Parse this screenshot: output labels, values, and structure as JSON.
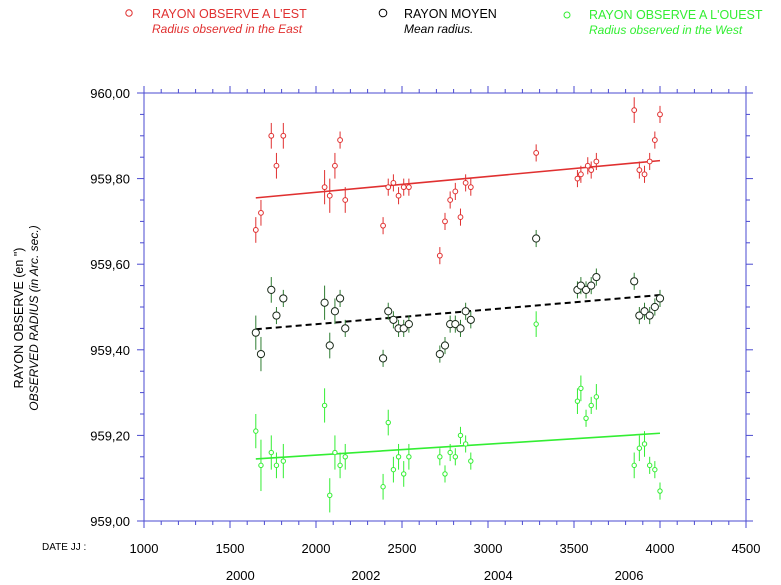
{
  "legend": {
    "east": {
      "label": "RAYON OBSERVE A L'EST",
      "sublabel": "Radius observed in the East",
      "color": "#e03030"
    },
    "mean": {
      "label": "RAYON MOYEN",
      "sublabel": "Mean radius.",
      "color": "#000000"
    },
    "west": {
      "label": "RAYON OBSERVE A L'OUEST",
      "sublabel": "Radius observed in the West",
      "color": "#33ee33"
    }
  },
  "axis": {
    "ylabel_fr": "RAYON OBSERVE (en \")",
    "ylabel_en": "OBSERVED RADIUS (in Arc. sec.)",
    "xprefix": "DATE JJ :"
  },
  "chart_data": {
    "type": "scatter",
    "xlim": [
      1000,
      4500
    ],
    "ylim": [
      959.0,
      960.0
    ],
    "xticks": [
      1000,
      1500,
      2000,
      2500,
      3000,
      3500,
      4000,
      4500
    ],
    "xtick_labels": [
      "1000",
      "1500",
      "2000",
      "2500",
      "3000",
      "3500",
      "4000",
      "4500"
    ],
    "yticks": [
      959.0,
      959.2,
      959.4,
      959.6,
      959.8,
      960.0
    ],
    "ytick_labels": [
      "959,00",
      "959,20",
      "959,40",
      "959,60",
      "959,80",
      "960,00"
    ],
    "years": [
      {
        "label": "2000",
        "x": 1560
      },
      {
        "label": "2002",
        "x": 2290
      },
      {
        "label": "2004",
        "x": 3060
      },
      {
        "label": "2006",
        "x": 3820
      }
    ],
    "series": [
      {
        "name": "RAYON OBSERVE A L'EST",
        "key": "east",
        "points": [
          {
            "x": 1650,
            "y": 959.68,
            "e": 0.03
          },
          {
            "x": 1680,
            "y": 959.72,
            "e": 0.03
          },
          {
            "x": 1740,
            "y": 959.9,
            "e": 0.03
          },
          {
            "x": 1770,
            "y": 959.83,
            "e": 0.03
          },
          {
            "x": 1810,
            "y": 959.9,
            "e": 0.03
          },
          {
            "x": 2050,
            "y": 959.78,
            "e": 0.04
          },
          {
            "x": 2080,
            "y": 959.76,
            "e": 0.04
          },
          {
            "x": 2110,
            "y": 959.83,
            "e": 0.03
          },
          {
            "x": 2140,
            "y": 959.89,
            "e": 0.02
          },
          {
            "x": 2170,
            "y": 959.75,
            "e": 0.03
          },
          {
            "x": 2390,
            "y": 959.69,
            "e": 0.02
          },
          {
            "x": 2420,
            "y": 959.78,
            "e": 0.02
          },
          {
            "x": 2450,
            "y": 959.79,
            "e": 0.02
          },
          {
            "x": 2480,
            "y": 959.76,
            "e": 0.02
          },
          {
            "x": 2510,
            "y": 959.78,
            "e": 0.02
          },
          {
            "x": 2540,
            "y": 959.78,
            "e": 0.02
          },
          {
            "x": 2720,
            "y": 959.62,
            "e": 0.02
          },
          {
            "x": 2750,
            "y": 959.7,
            "e": 0.02
          },
          {
            "x": 2780,
            "y": 959.75,
            "e": 0.02
          },
          {
            "x": 2810,
            "y": 959.77,
            "e": 0.02
          },
          {
            "x": 2840,
            "y": 959.71,
            "e": 0.02
          },
          {
            "x": 2870,
            "y": 959.79,
            "e": 0.02
          },
          {
            "x": 2900,
            "y": 959.78,
            "e": 0.02
          },
          {
            "x": 3280,
            "y": 959.86,
            "e": 0.02
          },
          {
            "x": 3520,
            "y": 959.8,
            "e": 0.02
          },
          {
            "x": 3540,
            "y": 959.81,
            "e": 0.02
          },
          {
            "x": 3580,
            "y": 959.83,
            "e": 0.02
          },
          {
            "x": 3600,
            "y": 959.82,
            "e": 0.02
          },
          {
            "x": 3630,
            "y": 959.84,
            "e": 0.02
          },
          {
            "x": 3850,
            "y": 959.96,
            "e": 0.03
          },
          {
            "x": 3880,
            "y": 959.82,
            "e": 0.02
          },
          {
            "x": 3910,
            "y": 959.81,
            "e": 0.02
          },
          {
            "x": 3940,
            "y": 959.84,
            "e": 0.02
          },
          {
            "x": 3970,
            "y": 959.89,
            "e": 0.02
          },
          {
            "x": 4000,
            "y": 959.95,
            "e": 0.02
          }
        ],
        "trend": {
          "x": [
            1650,
            4000
          ],
          "y": [
            959.755,
            959.842
          ]
        }
      },
      {
        "name": "RAYON MOYEN",
        "key": "mean",
        "points": [
          {
            "x": 1650,
            "y": 959.44,
            "e": 0.04
          },
          {
            "x": 1680,
            "y": 959.39,
            "e": 0.04
          },
          {
            "x": 1740,
            "y": 959.54,
            "e": 0.03
          },
          {
            "x": 1770,
            "y": 959.48,
            "e": 0.02
          },
          {
            "x": 1810,
            "y": 959.52,
            "e": 0.02
          },
          {
            "x": 2050,
            "y": 959.51,
            "e": 0.04
          },
          {
            "x": 2080,
            "y": 959.41,
            "e": 0.03
          },
          {
            "x": 2110,
            "y": 959.49,
            "e": 0.03
          },
          {
            "x": 2140,
            "y": 959.52,
            "e": 0.02
          },
          {
            "x": 2170,
            "y": 959.45,
            "e": 0.02
          },
          {
            "x": 2390,
            "y": 959.38,
            "e": 0.02
          },
          {
            "x": 2420,
            "y": 959.49,
            "e": 0.02
          },
          {
            "x": 2450,
            "y": 959.47,
            "e": 0.02
          },
          {
            "x": 2480,
            "y": 959.45,
            "e": 0.02
          },
          {
            "x": 2510,
            "y": 959.45,
            "e": 0.02
          },
          {
            "x": 2540,
            "y": 959.46,
            "e": 0.02
          },
          {
            "x": 2720,
            "y": 959.39,
            "e": 0.02
          },
          {
            "x": 2750,
            "y": 959.41,
            "e": 0.02
          },
          {
            "x": 2780,
            "y": 959.46,
            "e": 0.02
          },
          {
            "x": 2810,
            "y": 959.46,
            "e": 0.02
          },
          {
            "x": 2840,
            "y": 959.45,
            "e": 0.02
          },
          {
            "x": 2870,
            "y": 959.49,
            "e": 0.02
          },
          {
            "x": 2900,
            "y": 959.47,
            "e": 0.02
          },
          {
            "x": 3280,
            "y": 959.66,
            "e": 0.02
          },
          {
            "x": 3520,
            "y": 959.54,
            "e": 0.02
          },
          {
            "x": 3540,
            "y": 959.55,
            "e": 0.02
          },
          {
            "x": 3570,
            "y": 959.54,
            "e": 0.02
          },
          {
            "x": 3600,
            "y": 959.55,
            "e": 0.02
          },
          {
            "x": 3630,
            "y": 959.57,
            "e": 0.02
          },
          {
            "x": 3850,
            "y": 959.56,
            "e": 0.02
          },
          {
            "x": 3880,
            "y": 959.48,
            "e": 0.02
          },
          {
            "x": 3910,
            "y": 959.49,
            "e": 0.02
          },
          {
            "x": 3940,
            "y": 959.48,
            "e": 0.02
          },
          {
            "x": 3970,
            "y": 959.5,
            "e": 0.02
          },
          {
            "x": 4000,
            "y": 959.52,
            "e": 0.02
          }
        ],
        "trend": {
          "x": [
            1650,
            4000
          ],
          "y": [
            959.448,
            959.528
          ],
          "dashed": true
        }
      },
      {
        "name": "RAYON OBSERVE A L'OUEST",
        "key": "west",
        "points": [
          {
            "x": 1650,
            "y": 959.21,
            "e": 0.04
          },
          {
            "x": 1680,
            "y": 959.13,
            "e": 0.06
          },
          {
            "x": 1740,
            "y": 959.16,
            "e": 0.04
          },
          {
            "x": 1770,
            "y": 959.13,
            "e": 0.03
          },
          {
            "x": 1810,
            "y": 959.14,
            "e": 0.04
          },
          {
            "x": 2050,
            "y": 959.27,
            "e": 0.04
          },
          {
            "x": 2080,
            "y": 959.06,
            "e": 0.04
          },
          {
            "x": 2110,
            "y": 959.16,
            "e": 0.04
          },
          {
            "x": 2140,
            "y": 959.13,
            "e": 0.03
          },
          {
            "x": 2170,
            "y": 959.15,
            "e": 0.03
          },
          {
            "x": 2390,
            "y": 959.08,
            "e": 0.03
          },
          {
            "x": 2420,
            "y": 959.23,
            "e": 0.03
          },
          {
            "x": 2450,
            "y": 959.12,
            "e": 0.03
          },
          {
            "x": 2480,
            "y": 959.15,
            "e": 0.03
          },
          {
            "x": 2510,
            "y": 959.11,
            "e": 0.03
          },
          {
            "x": 2540,
            "y": 959.15,
            "e": 0.03
          },
          {
            "x": 2720,
            "y": 959.15,
            "e": 0.02
          },
          {
            "x": 2750,
            "y": 959.11,
            "e": 0.02
          },
          {
            "x": 2780,
            "y": 959.16,
            "e": 0.02
          },
          {
            "x": 2810,
            "y": 959.15,
            "e": 0.02
          },
          {
            "x": 2840,
            "y": 959.2,
            "e": 0.02
          },
          {
            "x": 2870,
            "y": 959.18,
            "e": 0.02
          },
          {
            "x": 2900,
            "y": 959.14,
            "e": 0.02
          },
          {
            "x": 3280,
            "y": 959.46,
            "e": 0.03
          },
          {
            "x": 3520,
            "y": 959.28,
            "e": 0.03
          },
          {
            "x": 3540,
            "y": 959.31,
            "e": 0.03
          },
          {
            "x": 3570,
            "y": 959.24,
            "e": 0.02
          },
          {
            "x": 3600,
            "y": 959.27,
            "e": 0.02
          },
          {
            "x": 3630,
            "y": 959.29,
            "e": 0.03
          },
          {
            "x": 3850,
            "y": 959.13,
            "e": 0.03
          },
          {
            "x": 3880,
            "y": 959.17,
            "e": 0.03
          },
          {
            "x": 3910,
            "y": 959.18,
            "e": 0.03
          },
          {
            "x": 3940,
            "y": 959.13,
            "e": 0.02
          },
          {
            "x": 3970,
            "y": 959.12,
            "e": 0.02
          },
          {
            "x": 4000,
            "y": 959.07,
            "e": 0.02
          }
        ],
        "trend": {
          "x": [
            1650,
            4000
          ],
          "y": [
            959.145,
            959.205
          ]
        }
      }
    ]
  }
}
